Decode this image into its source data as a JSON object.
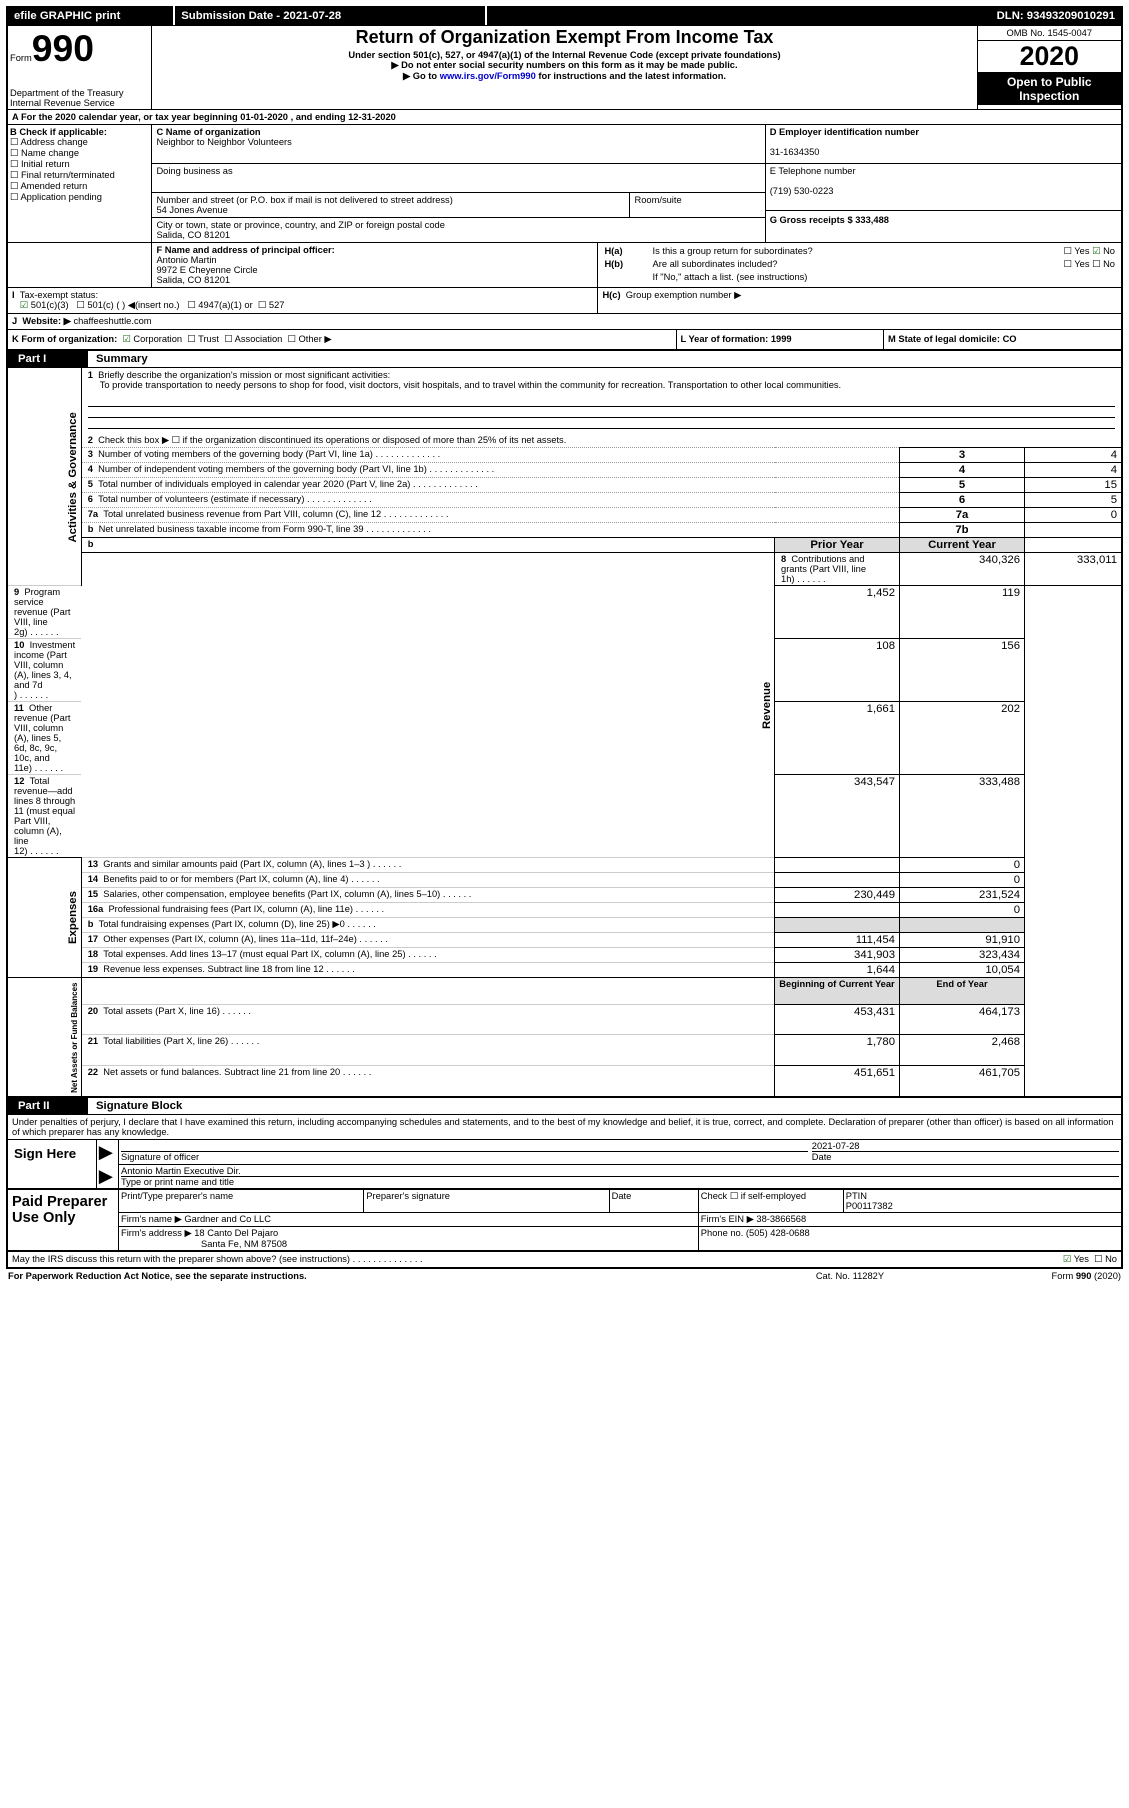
{
  "topbar": {
    "efile": "efile GRAPHIC print",
    "sublabel": "Submission Date - 2021-07-28",
    "dln": "DLN: 93493209010291"
  },
  "header": {
    "formword": "Form",
    "form990": "990",
    "dept1": "Department of the Treasury",
    "dept2": "Internal Revenue Service",
    "title": "Return of Organization Exempt From Income Tax",
    "sub1": "Under section 501(c), 527, or 4947(a)(1) of the Internal Revenue Code (except private foundations)",
    "sub2": "▶ Do not enter social security numbers on this form as it may be made public.",
    "sub3a": "▶ Go to ",
    "sub3link": "www.irs.gov/Form990",
    "sub3b": " for instructions and the latest information.",
    "omb": "OMB No. 1545-0047",
    "year": "2020",
    "open": "Open to Public Inspection"
  },
  "A": {
    "line": "A For the 2020 calendar year, or tax year beginning 01-01-2020   , and ending 12-31-2020"
  },
  "B": {
    "label": "B Check if applicable:",
    "addr": "Address change",
    "name": "Name change",
    "init": "Initial return",
    "final": "Final return/terminated",
    "amend": "Amended return",
    "app": "Application pending"
  },
  "C": {
    "nameLabel": "C Name of organization",
    "name": "Neighbor to Neighbor Volunteers",
    "dbaLabel": "Doing business as",
    "addrLabel": "Number and street (or P.O. box if mail is not delivered to street address)",
    "room": "Room/suite",
    "street": "54 Jones Avenue",
    "cityLabel": "City or town, state or province, country, and ZIP or foreign postal code",
    "city": "Salida, CO  81201"
  },
  "D": {
    "label": "D Employer identification number",
    "ein": "31-1634350"
  },
  "E": {
    "label": "E Telephone number",
    "phone": "(719) 530-0223"
  },
  "G": {
    "label": "G Gross receipts $ 333,488"
  },
  "F": {
    "label": "F  Name and address of principal officer:",
    "name": "Antonio Martin",
    "l1": "9972 E Cheyenne Circle",
    "l2": "Salida, CO  81201"
  },
  "H": {
    "a": "Is this a group return for subordinates?",
    "b": "Are all subordinates included?",
    "bnote": "If \"No,\" attach a list. (see instructions)",
    "c": "Group exemption number ▶",
    "yes": "Yes",
    "no": "No"
  },
  "I": {
    "label": "Tax-exempt status:",
    "c3": "501(c)(3)",
    "c": "501(c) (  ) ◀(insert no.)",
    "a1": "4947(a)(1) or",
    "s527": "527"
  },
  "J": {
    "label": "Website: ▶",
    "site": "chaffeeshuttle.com"
  },
  "K": {
    "label": "K Form of organization:",
    "corp": "Corporation",
    "trust": "Trust",
    "assoc": "Association",
    "other": "Other ▶"
  },
  "L": {
    "label": "L Year of formation: 1999"
  },
  "M": {
    "label": "M State of legal domicile: CO"
  },
  "part1": {
    "title": "Summary",
    "l1a": "Briefly describe the organization's mission or most significant activities:",
    "l1b": "To provide transportation to needy persons to shop for food, visit doctors, visit hospitals, and to travel within the community for recreation. Transportation to other local communities.",
    "l2": "Check this box ▶ ☐  if the organization discontinued its operations or disposed of more than 25% of its net assets.",
    "rows": [
      {
        "n": "3",
        "t": "Number of voting members of the governing body (Part VI, line 1a)",
        "side": "3",
        "v": "4"
      },
      {
        "n": "4",
        "t": "Number of independent voting members of the governing body (Part VI, line 1b)",
        "side": "4",
        "v": "4"
      },
      {
        "n": "5",
        "t": "Total number of individuals employed in calendar year 2020 (Part V, line 2a)",
        "side": "5",
        "v": "15"
      },
      {
        "n": "6",
        "t": "Total number of volunteers (estimate if necessary)",
        "side": "6",
        "v": "5"
      },
      {
        "n": "7a",
        "t": "Total unrelated business revenue from Part VIII, column (C), line 12",
        "side": "7a",
        "v": "0"
      },
      {
        "n": "b",
        "t": "Net unrelated business taxable income from Form 990-T, line 39",
        "side": "7b",
        "v": ""
      }
    ],
    "py": "Prior Year",
    "cy": "Current Year",
    "rev": [
      {
        "n": "8",
        "t": "Contributions and grants (Part VIII, line 1h)",
        "p": "340,326",
        "c": "333,011"
      },
      {
        "n": "9",
        "t": "Program service revenue (Part VIII, line 2g)",
        "p": "1,452",
        "c": "119"
      },
      {
        "n": "10",
        "t": "Investment income (Part VIII, column (A), lines 3, 4, and 7d )",
        "p": "108",
        "c": "156"
      },
      {
        "n": "11",
        "t": "Other revenue (Part VIII, column (A), lines 5, 6d, 8c, 9c, 10c, and 11e)",
        "p": "1,661",
        "c": "202"
      },
      {
        "n": "12",
        "t": "Total revenue—add lines 8 through 11 (must equal Part VIII, column (A), line 12)",
        "p": "343,547",
        "c": "333,488"
      }
    ],
    "exp": [
      {
        "n": "13",
        "t": "Grants and similar amounts paid (Part IX, column (A), lines 1–3 )",
        "p": "",
        "c": "0"
      },
      {
        "n": "14",
        "t": "Benefits paid to or for members (Part IX, column (A), line 4)",
        "p": "",
        "c": "0"
      },
      {
        "n": "15",
        "t": "Salaries, other compensation, employee benefits (Part IX, column (A), lines 5–10)",
        "p": "230,449",
        "c": "231,524"
      },
      {
        "n": "16a",
        "t": "Professional fundraising fees (Part IX, column (A), line 11e)",
        "p": "",
        "c": "0"
      },
      {
        "n": "b",
        "t": "Total fundraising expenses (Part IX, column (D), line 25) ▶0",
        "p": "gray",
        "c": "gray"
      },
      {
        "n": "17",
        "t": "Other expenses (Part IX, column (A), lines 11a–11d, 11f–24e)",
        "p": "111,454",
        "c": "91,910"
      },
      {
        "n": "18",
        "t": "Total expenses. Add lines 13–17 (must equal Part IX, column (A), line 25)",
        "p": "341,903",
        "c": "323,434"
      },
      {
        "n": "19",
        "t": "Revenue less expenses. Subtract line 18 from line 12",
        "p": "1,644",
        "c": "10,054"
      }
    ],
    "boy": "Beginning of Current Year",
    "eoy": "End of Year",
    "na": [
      {
        "n": "20",
        "t": "Total assets (Part X, line 16)",
        "p": "453,431",
        "c": "464,173"
      },
      {
        "n": "21",
        "t": "Total liabilities (Part X, line 26)",
        "p": "1,780",
        "c": "2,468"
      },
      {
        "n": "22",
        "t": "Net assets or fund balances. Subtract line 21 from line 20",
        "p": "451,651",
        "c": "461,705"
      }
    ],
    "vert": {
      "ag": "Activities & Governance",
      "rev": "Revenue",
      "exp": "Expenses",
      "na": "Net Assets or Fund Balances"
    }
  },
  "part2": {
    "title": "Signature Block",
    "decl": "Under penalties of perjury, I declare that I have examined this return, including accompanying schedules and statements, and to the best of my knowledge and belief, it is true, correct, and complete. Declaration of preparer (other than officer) is based on all information of which preparer has any knowledge.",
    "sign": "Sign Here",
    "sigoff": "Signature of officer",
    "date": "Date",
    "sigdate": "2021-07-28",
    "typed": "Antonio Martin  Executive Dir.",
    "typedL": "Type or print name and title",
    "paid": "Paid Preparer Use Only",
    "ppn": "Print/Type preparer's name",
    "psig": "Preparer's signature",
    "pdate": "Date",
    "pself": "Check ☐  if self-employed",
    "ptin": "PTIN",
    "ptinv": "P00117382",
    "firmn": "Firm's name   ▶",
    "firm": "Gardner and Co LLC",
    "fein": "Firm's EIN ▶",
    "feinv": "38-3866568",
    "firma": "Firm's address ▶",
    "addr1": "18 Canto Del Pajaro",
    "addr2": "Santa Fe, NM  87508",
    "phL": "Phone no.",
    "ph": "(505) 428-0688",
    "irs": "May the IRS discuss this return with the preparer shown above? (see instructions)"
  },
  "footer": {
    "l": "For Paperwork Reduction Act Notice, see the separate instructions.",
    "m": "Cat. No. 11282Y",
    "r": "Form 990 (2020)"
  }
}
